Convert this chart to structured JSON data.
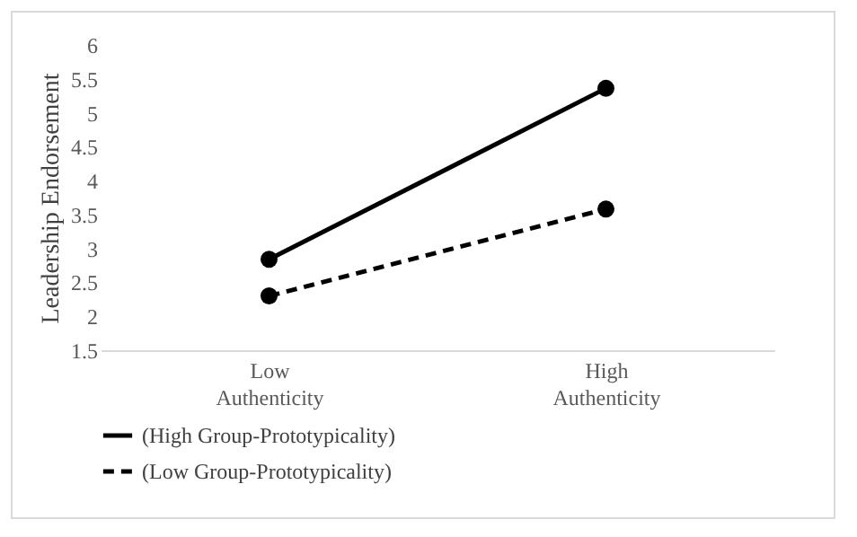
{
  "chart_data": {
    "type": "line",
    "ylabel": "Leadership  Endorsement",
    "categories": [
      "Low Authenticity",
      "High Authenticity"
    ],
    "series": [
      {
        "name": "(High Group-Prototypicality)",
        "color": "#000000",
        "values": [
          2.84,
          5.36
        ],
        "line_style": "solid"
      },
      {
        "name": "(Low Group-Prototypicality)",
        "color": "#000000",
        "values": [
          2.3,
          3.58
        ],
        "line_style": "dashed"
      }
    ],
    "ylim": [
      1.5,
      6
    ],
    "yticks": [
      1.5,
      2,
      2.5,
      3,
      3.5,
      4,
      4.5,
      5,
      5.5,
      6
    ],
    "grid": false,
    "legend": "bottom left",
    "marker": "circle"
  }
}
